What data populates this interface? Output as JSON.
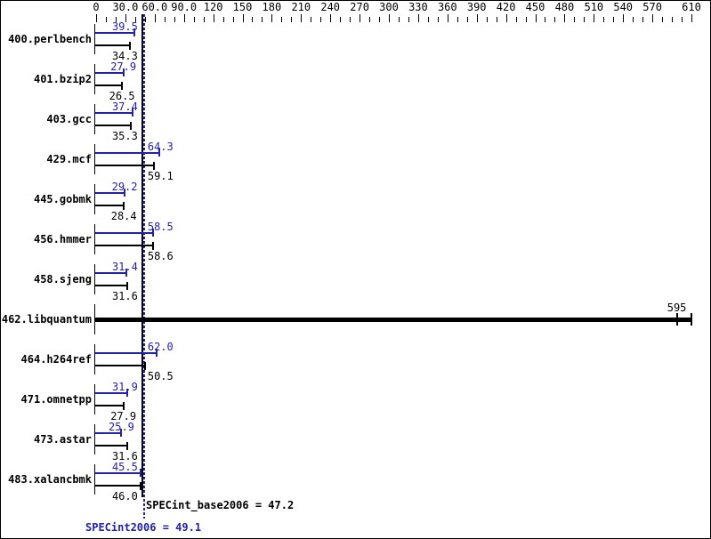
{
  "chart_data": {
    "type": "bar",
    "orientation": "horizontal",
    "title": "",
    "xlabel": "",
    "ylabel": "",
    "axis": {
      "min": 0,
      "max": 610,
      "minor_tick_step": 10,
      "major_ticks": [
        {
          "value": 0,
          "label": "0"
        },
        {
          "value": 30,
          "label": "30.0"
        },
        {
          "value": 60,
          "label": "60.0"
        },
        {
          "value": 90,
          "label": "90.0"
        },
        {
          "value": 120,
          "label": "120"
        },
        {
          "value": 150,
          "label": "150"
        },
        {
          "value": 180,
          "label": "180"
        },
        {
          "value": 210,
          "label": "210"
        },
        {
          "value": 240,
          "label": "240"
        },
        {
          "value": 270,
          "label": "270"
        },
        {
          "value": 300,
          "label": "300"
        },
        {
          "value": 330,
          "label": "330"
        },
        {
          "value": 360,
          "label": "360"
        },
        {
          "value": 390,
          "label": "390"
        },
        {
          "value": 420,
          "label": "420"
        },
        {
          "value": 450,
          "label": "450"
        },
        {
          "value": 480,
          "label": "480"
        },
        {
          "value": 510,
          "label": "510"
        },
        {
          "value": 540,
          "label": "540"
        },
        {
          "value": 570,
          "label": "570"
        },
        {
          "value": 610,
          "label": "610"
        }
      ]
    },
    "series": [
      {
        "name": "SPECint2006 (peak)",
        "color": "#2121aa",
        "values": [
          39.5,
          27.9,
          37.4,
          64.3,
          29.2,
          58.5,
          31.4,
          595,
          62.0,
          31.9,
          25.9,
          45.5
        ]
      },
      {
        "name": "SPECint_base2006 (base)",
        "color": "#000000",
        "values": [
          34.3,
          26.5,
          35.3,
          59.1,
          28.4,
          58.6,
          31.6,
          595,
          50.5,
          27.9,
          31.6,
          46.0
        ]
      }
    ],
    "categories": [
      "400.perlbench",
      "401.bzip2",
      "403.gcc",
      "429.mcf",
      "445.gobmk",
      "456.hmmer",
      "458.sjeng",
      "462.libquantum",
      "464.h264ref",
      "471.omnetpp",
      "473.astar",
      "483.xalancbmk"
    ],
    "benchmarks": [
      {
        "name": "400.perlbench",
        "peak": 39.5,
        "base": 34.3,
        "peak_label": "39.5",
        "base_label": "34.3"
      },
      {
        "name": "401.bzip2",
        "peak": 27.9,
        "base": 26.5,
        "peak_label": "27.9",
        "base_label": "26.5"
      },
      {
        "name": "403.gcc",
        "peak": 37.4,
        "base": 35.3,
        "peak_label": "37.4",
        "base_label": "35.3"
      },
      {
        "name": "429.mcf",
        "peak": 64.3,
        "base": 59.1,
        "peak_label": "64.3",
        "base_label": "59.1"
      },
      {
        "name": "445.gobmk",
        "peak": 29.2,
        "base": 28.4,
        "peak_label": "29.2",
        "base_label": "28.4"
      },
      {
        "name": "456.hmmer",
        "peak": 58.5,
        "base": 58.6,
        "peak_label": "58.5",
        "base_label": "58.6"
      },
      {
        "name": "458.sjeng",
        "peak": 31.4,
        "base": 31.6,
        "peak_label": "31.4",
        "base_label": "31.6"
      },
      {
        "name": "462.libquantum",
        "peak": 595,
        "base": 595,
        "single_label": "595",
        "single": true,
        "cap_values": [
          595,
          610
        ]
      },
      {
        "name": "464.h264ref",
        "peak": 62.0,
        "base": 50.5,
        "peak_label": "62.0",
        "base_label": "50.5"
      },
      {
        "name": "471.omnetpp",
        "peak": 31.9,
        "base": 27.9,
        "peak_label": "31.9",
        "base_label": "27.9"
      },
      {
        "name": "473.astar",
        "peak": 25.9,
        "base": 31.6,
        "peak_label": "25.9",
        "base_label": "31.6"
      },
      {
        "name": "483.xalancbmk",
        "peak": 45.5,
        "base": 46.0,
        "peak_label": "45.5",
        "base_label": "46.0"
      }
    ],
    "reference_lines": [
      {
        "name": "base_mean",
        "value": 47.2,
        "style": "solid",
        "color": "#000000"
      },
      {
        "name": "peak_mean",
        "value": 49.1,
        "style": "dotted",
        "color": "#2121aa"
      }
    ],
    "summary": {
      "base_label": "SPECint_base2006 = 47.2",
      "base_value": 47.2,
      "peak_label": "SPECint2006 = 49.1",
      "peak_value": 49.1
    },
    "colors": {
      "peak": "#2121aa",
      "base": "#000000",
      "background": "#ffffff"
    },
    "legend_position": "none",
    "grid": false
  }
}
